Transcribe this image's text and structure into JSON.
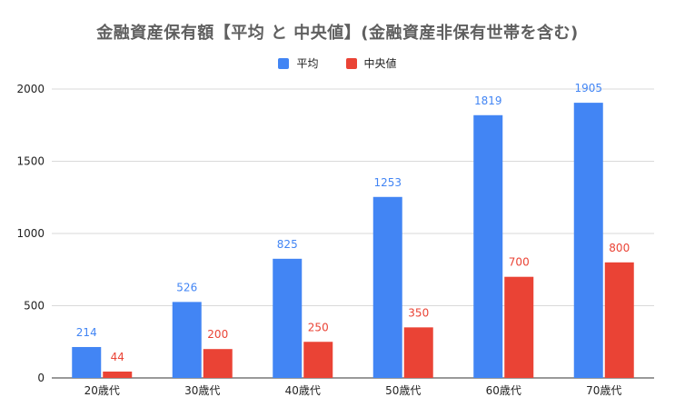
{
  "chart_data": {
    "type": "bar",
    "title": "金融資産保有額【平均 と 中央値】(金融資産非保有世帯を含む)",
    "categories": [
      "20歳代",
      "30歳代",
      "40歳代",
      "50歳代",
      "60歳代",
      "70歳代"
    ],
    "series": [
      {
        "name": "平均",
        "color": "#4285f4",
        "values": [
          214,
          526,
          825,
          1253,
          1819,
          1905
        ]
      },
      {
        "name": "中央値",
        "color": "#ea4335",
        "values": [
          44,
          200,
          250,
          350,
          700,
          800
        ]
      }
    ],
    "ylim": [
      0,
      2000
    ],
    "yticks": [
      0,
      500,
      1000,
      1500,
      2000
    ],
    "grid": true,
    "legend_position": "top"
  }
}
